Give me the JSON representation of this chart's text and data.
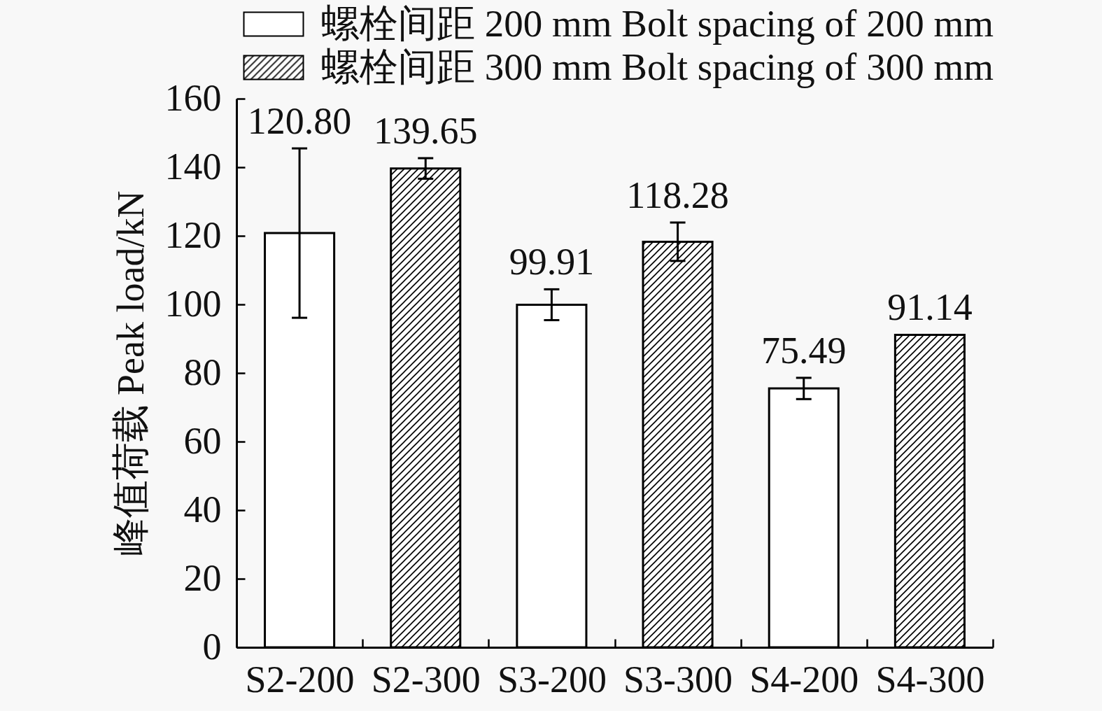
{
  "chart_data": {
    "type": "bar",
    "ylabel": "峰值荷载 Peak load/kN",
    "categories": [
      "S2-200",
      "S2-300",
      "S3-200",
      "S3-300",
      "S4-200",
      "S4-300"
    ],
    "series": [
      {
        "name": "螺栓间距 200 mm Bolt spacing of 200 mm",
        "color": "#ffffff",
        "values": [
          120.8,
          null,
          99.91,
          null,
          75.49,
          null
        ],
        "errors": [
          24.7,
          null,
          4.5,
          null,
          3.1,
          null
        ],
        "value_labels": [
          "120.80",
          null,
          "99.91",
          null,
          "75.49",
          null
        ]
      },
      {
        "name": "螺栓间距 300 mm Bolt spacing of 300 mm",
        "color": "#000000",
        "values": [
          null,
          139.65,
          null,
          118.28,
          null,
          91.14
        ],
        "errors": [
          null,
          3,
          null,
          5.6,
          null,
          null
        ],
        "value_labels": [
          null,
          "139.65",
          null,
          "118.28",
          null,
          "91.14"
        ]
      }
    ],
    "ylim": [
      0,
      160
    ],
    "yticks": [
      0,
      20,
      40,
      60,
      80,
      100,
      120,
      140,
      160
    ],
    "grid": false,
    "legend": "top"
  }
}
